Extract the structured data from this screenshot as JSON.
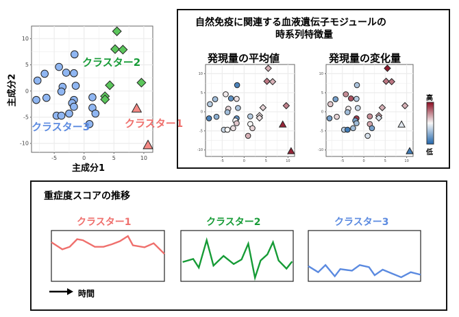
{
  "main_scatter": {
    "xlabel": "主成分1",
    "ylabel": "主成分2",
    "cluster_labels": {
      "c1": "クラスター1",
      "c2": "クラスター2",
      "c3": "クラスター3"
    }
  },
  "feature_panel": {
    "title_line1": "自然免疫に関連する血液遺伝子モジュールの",
    "title_line2": "時系列特徴量",
    "mean_title": "発現量の平均値",
    "change_title": "発現量の変化量",
    "colorbar_high": "高",
    "colorbar_low": "低"
  },
  "severity_panel": {
    "title": "重症度スコアの推移",
    "time_label": "時間",
    "cluster_titles": [
      "クラスター1",
      "クラスター2",
      "クラスター3"
    ]
  },
  "colors": {
    "cluster1": "#ef6f6c",
    "cluster2": "#169b36",
    "cluster3": "#5b8ae0",
    "fill1": "#f58a85",
    "fill2": "#5cc65c",
    "fill3": "#8fb6f2",
    "low": "#2166ac",
    "mid": "#f7f7f7",
    "high": "#8b0d22"
  },
  "chart_data": [
    {
      "type": "scatter",
      "name": "main-pca",
      "xlabel": "主成分1",
      "ylabel": "主成分2",
      "xlim": [
        -8.8,
        11.5
      ],
      "ylim": [
        -11.7,
        12.4
      ],
      "xticks": [
        -5,
        0,
        5,
        10
      ],
      "yticks": [
        -10,
        -5,
        0,
        5,
        10
      ],
      "grid": true,
      "points": [
        {
          "cluster": 3,
          "x": -1.6,
          "y": 7.0,
          "mean": -0.8,
          "change": -0.35
        },
        {
          "cluster": 3,
          "x": -4.2,
          "y": 4.6,
          "mean": 0.05,
          "change": 0.45
        },
        {
          "cluster": 3,
          "x": -6.6,
          "y": 3.3,
          "mean": -0.4,
          "change": -0.6
        },
        {
          "cluster": 3,
          "x": -3.0,
          "y": 3.5,
          "mean": -0.7,
          "change": 0.7
        },
        {
          "cluster": 3,
          "x": -1.7,
          "y": 3.4,
          "mean": 0.1,
          "change": -0.3
        },
        {
          "cluster": 3,
          "x": -7.8,
          "y": 2.0,
          "mean": -0.3,
          "change": 0.2
        },
        {
          "cluster": 3,
          "x": -3.6,
          "y": 0.8,
          "mean": 0.15,
          "change": 0.05
        },
        {
          "cluster": 3,
          "x": -1.4,
          "y": 1.0,
          "mean": -0.35,
          "change": -0.2
        },
        {
          "cluster": 3,
          "x": -3.8,
          "y": -0.1,
          "mean": -0.4,
          "change": -0.4
        },
        {
          "cluster": 3,
          "x": -8.0,
          "y": -1.7,
          "mean": -0.8,
          "change": -0.6
        },
        {
          "cluster": 3,
          "x": -6.3,
          "y": -1.3,
          "mean": -0.5,
          "change": 0.15
        },
        {
          "cluster": 3,
          "x": -1.7,
          "y": -1.7,
          "mean": -0.7,
          "change": 0.8
        },
        {
          "cluster": 3,
          "x": -2.0,
          "y": -2.3,
          "mean": 0.0,
          "change": -0.6
        },
        {
          "cluster": 3,
          "x": -1.7,
          "y": -3.0,
          "mean": 0.2,
          "change": -0.4
        },
        {
          "cluster": 3,
          "x": 1.4,
          "y": -1.2,
          "mean": -0.3,
          "change": 0.45
        },
        {
          "cluster": 3,
          "x": 1.4,
          "y": -3.2,
          "mean": 0.0,
          "change": 0.35
        },
        {
          "cluster": 3,
          "x": 1.9,
          "y": -4.3,
          "mean": 0.15,
          "change": -0.6
        },
        {
          "cluster": 3,
          "x": -2.5,
          "y": -4.3,
          "mean": 0.1,
          "change": -0.4
        },
        {
          "cluster": 3,
          "x": -4.6,
          "y": -4.7,
          "mean": -0.2,
          "change": -0.3
        },
        {
          "cluster": 3,
          "x": -3.8,
          "y": -4.7,
          "mean": 0.0,
          "change": -0.85
        },
        {
          "cluster": 3,
          "x": 0.9,
          "y": -6.3,
          "mean": 0.3,
          "change": -0.15
        },
        {
          "cluster": 2,
          "x": 5.5,
          "y": 11.4,
          "mean": 0.3,
          "change": 0.95
        },
        {
          "cluster": 2,
          "x": 5.2,
          "y": 8.0,
          "mean": 0.55,
          "change": 0.55
        },
        {
          "cluster": 2,
          "x": 6.5,
          "y": 7.9,
          "mean": 0.3,
          "change": 0.55
        },
        {
          "cluster": 2,
          "x": 9.6,
          "y": 1.6,
          "mean": 0.5,
          "change": 0.3
        },
        {
          "cluster": 2,
          "x": 4.3,
          "y": 1.1,
          "mean": 0.15,
          "change": 0.3
        },
        {
          "cluster": 2,
          "x": 3.5,
          "y": -1.0,
          "mean": 0.1,
          "change": 0.35
        },
        {
          "cluster": 2,
          "x": 3.5,
          "y": -1.6,
          "mean": 0.1,
          "change": -0.15
        },
        {
          "cluster": 1,
          "x": 8.8,
          "y": -3.3,
          "mean": 0.9,
          "change": -0.1
        },
        {
          "cluster": 1,
          "x": 10.7,
          "y": -10.3,
          "mean": 0.9,
          "change": -0.85
        }
      ]
    },
    {
      "type": "line",
      "name": "severity-trends",
      "xlabel": "時間",
      "series": [
        {
          "name": "クラスター1",
          "x": [
            0,
            0.097,
            0.162,
            0.228,
            0.279,
            0.384,
            0.461,
            0.535,
            0.606,
            0.677,
            0.721,
            0.824,
            0.905,
            1
          ],
          "y": [
            0.77,
            0.63,
            0.68,
            0.83,
            0.81,
            0.68,
            0.68,
            0.73,
            0.79,
            0.89,
            0.71,
            0.67,
            0.75,
            0.54
          ]
        },
        {
          "name": "クラスター2",
          "x": [
            0.016,
            0.11,
            0.16,
            0.23,
            0.29,
            0.38,
            0.47,
            0.54,
            0.6,
            0.66,
            0.71,
            0.77,
            0.82,
            0.87,
            0.94,
            0.99
          ],
          "y": [
            0.38,
            0.44,
            0.27,
            0.81,
            0.31,
            0.5,
            0.34,
            0.43,
            0.74,
            0.07,
            0.41,
            0.53,
            0.77,
            0.41,
            0.25,
            0.39
          ]
        },
        {
          "name": "クラスター3",
          "x": [
            0,
            0.088,
            0.153,
            0.236,
            0.285,
            0.389,
            0.458,
            0.54,
            0.591,
            0.662,
            0.749,
            0.827,
            0.912,
            1
          ],
          "y": [
            0.3,
            0.18,
            0.32,
            0.1,
            0.24,
            0.21,
            0.32,
            0.28,
            0.12,
            0.23,
            0.15,
            0.08,
            0.18,
            0.13
          ]
        }
      ]
    }
  ]
}
